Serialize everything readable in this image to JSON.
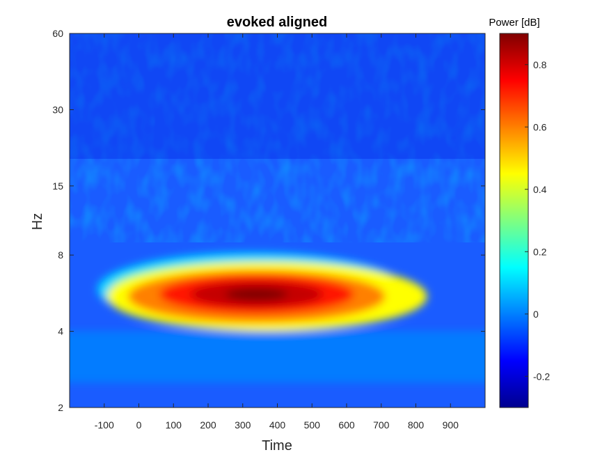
{
  "chart_data": {
    "type": "heatmap",
    "title": "evoked aligned",
    "xlabel": "Time",
    "ylabel": "Hz",
    "xlim": [
      -200,
      1000
    ],
    "x_ticks": [
      -100,
      0,
      100,
      200,
      300,
      400,
      500,
      600,
      700,
      800,
      900
    ],
    "y_scale": "log",
    "ylim": [
      2,
      60
    ],
    "y_ticks": [
      2,
      4,
      8,
      15,
      30,
      60
    ],
    "colormap": "jet",
    "colorbar": {
      "label": "Power [dB]",
      "clim": [
        -0.3,
        0.9
      ],
      "ticks": [
        "-0.2",
        "0",
        "0.2",
        "0.4",
        "0.6",
        "0.8"
      ]
    },
    "grid": false,
    "features": [
      {
        "name": "evoked peak",
        "time": 340,
        "freq_hz": 5.6,
        "power_db": 0.9
      },
      {
        "name": "broad theta band",
        "time_range": [
          -100,
          750
        ],
        "freq_range_hz": [
          4.4,
          7.8
        ],
        "power_db": 0.25
      },
      {
        "name": "low band",
        "time_range": [
          -200,
          1000
        ],
        "freq_range_hz": [
          2.5,
          4.0
        ],
        "power_db": 0.0
      },
      {
        "name": "background",
        "freq_range_hz": [
          8,
          60
        ],
        "power_db": -0.15
      }
    ]
  }
}
